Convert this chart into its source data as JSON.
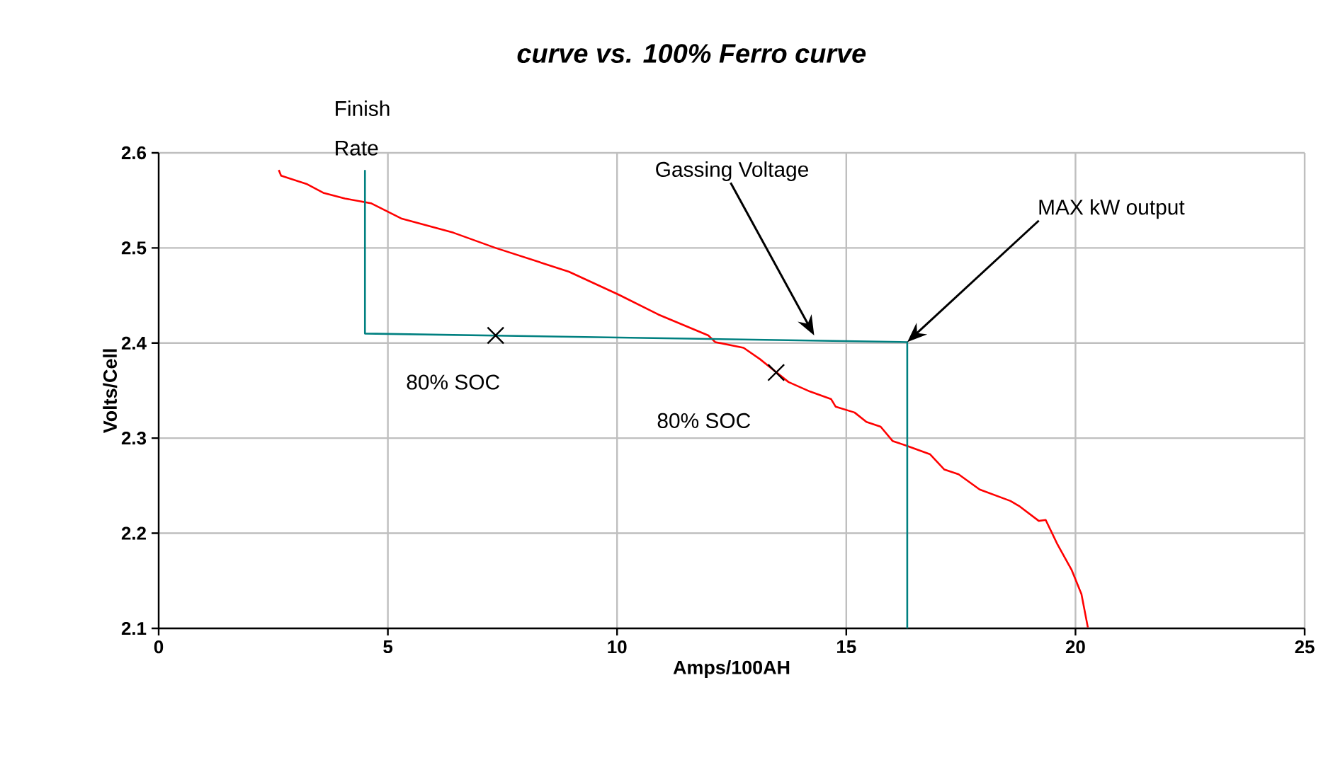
{
  "chart_data": {
    "type": "line",
    "title": "curve vs.  100% Ferro curve",
    "xlabel": "Amps/100AH",
    "ylabel": "Volts/Cell",
    "xlim": [
      0,
      25
    ],
    "ylim": [
      2.1,
      2.6
    ],
    "xticks": [
      0,
      5,
      10,
      15,
      20,
      25
    ],
    "yticks": [
      2.1,
      2.2,
      2.3,
      2.4,
      2.5,
      2.6
    ],
    "grid": true,
    "series": [
      {
        "color": "#ff0000",
        "x": [
          2.62,
          2.67,
          3.24,
          3.59,
          4.06,
          4.63,
          5.29,
          6.43,
          7.35,
          8.95,
          10.03,
          10.9,
          11.99,
          12.14,
          12.76,
          13.12,
          13.74,
          14.21,
          14.67,
          14.77,
          15.18,
          15.44,
          15.75,
          16.01,
          16.32,
          16.83,
          17.14,
          17.45,
          17.91,
          18.58,
          18.79,
          19.2,
          19.35,
          19.61,
          19.92,
          20.13,
          20.27
        ],
        "values": [
          2.582,
          2.576,
          2.567,
          2.558,
          2.552,
          2.547,
          2.531,
          2.516,
          2.5,
          2.475,
          2.451,
          2.43,
          2.408,
          2.401,
          2.395,
          2.383,
          2.359,
          2.349,
          2.341,
          2.333,
          2.327,
          2.317,
          2.312,
          2.297,
          2.292,
          2.283,
          2.267,
          2.262,
          2.246,
          2.234,
          2.228,
          2.213,
          2.214,
          2.188,
          2.161,
          2.136,
          2.101
        ]
      },
      {
        "color": "#008080",
        "x": [
          4.5,
          4.5,
          16.33,
          16.33
        ],
        "values": [
          2.582,
          2.41,
          2.401,
          2.1
        ]
      },
      {
        "type": "scatter",
        "marker": "cross",
        "color": "#000000",
        "x": [
          7.35,
          13.47
        ],
        "values": [
          2.408,
          2.369
        ]
      }
    ],
    "annotations": [
      {
        "text": "Finish Rate",
        "x": 4.5,
        "y": 2.582
      },
      {
        "text": "Gassing Voltage",
        "x": 14.3,
        "y": 2.408
      },
      {
        "text": "MAX kW output",
        "x": 16.33,
        "y": 2.401
      },
      {
        "text": "80% SOC",
        "x": 7.35,
        "y": 2.408
      },
      {
        "text": "80% SOC",
        "x": 13.47,
        "y": 2.369
      }
    ]
  }
}
